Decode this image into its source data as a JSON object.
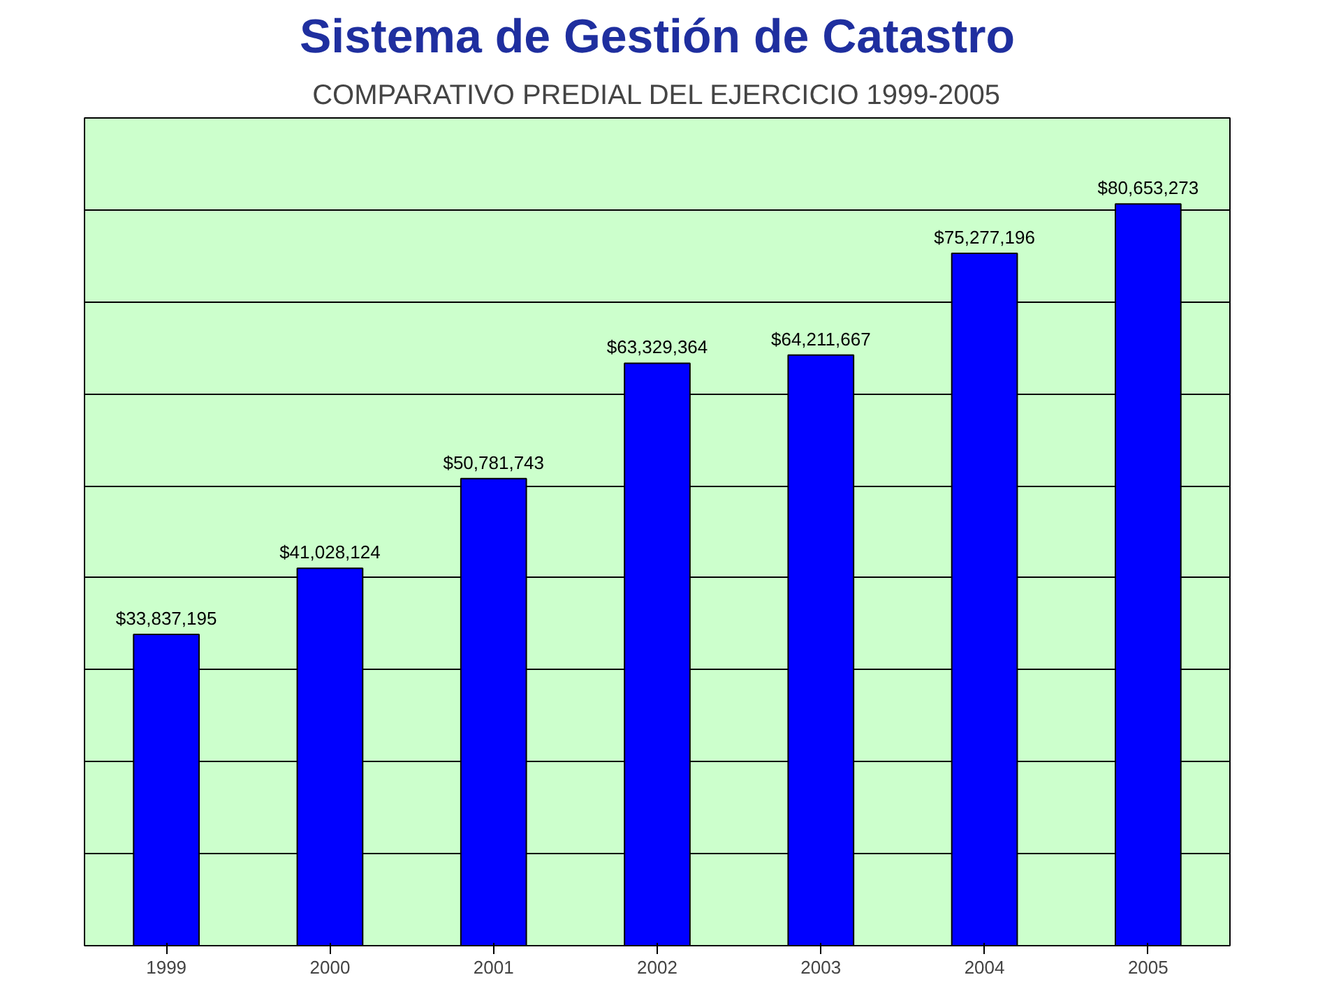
{
  "chart_data": {
    "type": "bar",
    "title": "Sistema de Gestión de Catastro",
    "subtitle": "COMPARATIVO PREDIAL DEL EJERCICIO 1999-2005",
    "categories": [
      "1999",
      "2000",
      "2001",
      "2002",
      "2003",
      "2004",
      "2005"
    ],
    "values": [
      33837195,
      41028124,
      50781743,
      63329364,
      64211667,
      75277196,
      80653273
    ],
    "value_labels": [
      "$33,837,195",
      "$41,028,124",
      "$50,781,743",
      "$63,329,364",
      "$64,211,667",
      "$75,277,196",
      "$80,653,273"
    ],
    "color": "#0000ff",
    "ylim": [
      0,
      90000000
    ],
    "yticks": [
      {
        "value": 0,
        "label": null
      },
      {
        "value": 10000000,
        "label": null
      },
      {
        "value": 20000000,
        "label": null
      },
      {
        "value": 30000000,
        "label": null
      },
      {
        "value": 40000000,
        "label": null
      },
      {
        "value": 50000000,
        "label": null
      },
      {
        "value": 60000000,
        "label": null
      },
      {
        "value": 70000000,
        "label": null
      },
      {
        "value": 80000000,
        "label": null
      },
      {
        "value": 90000000,
        "label": null
      }
    ],
    "tick_labels": "x",
    "grid": "y"
  }
}
